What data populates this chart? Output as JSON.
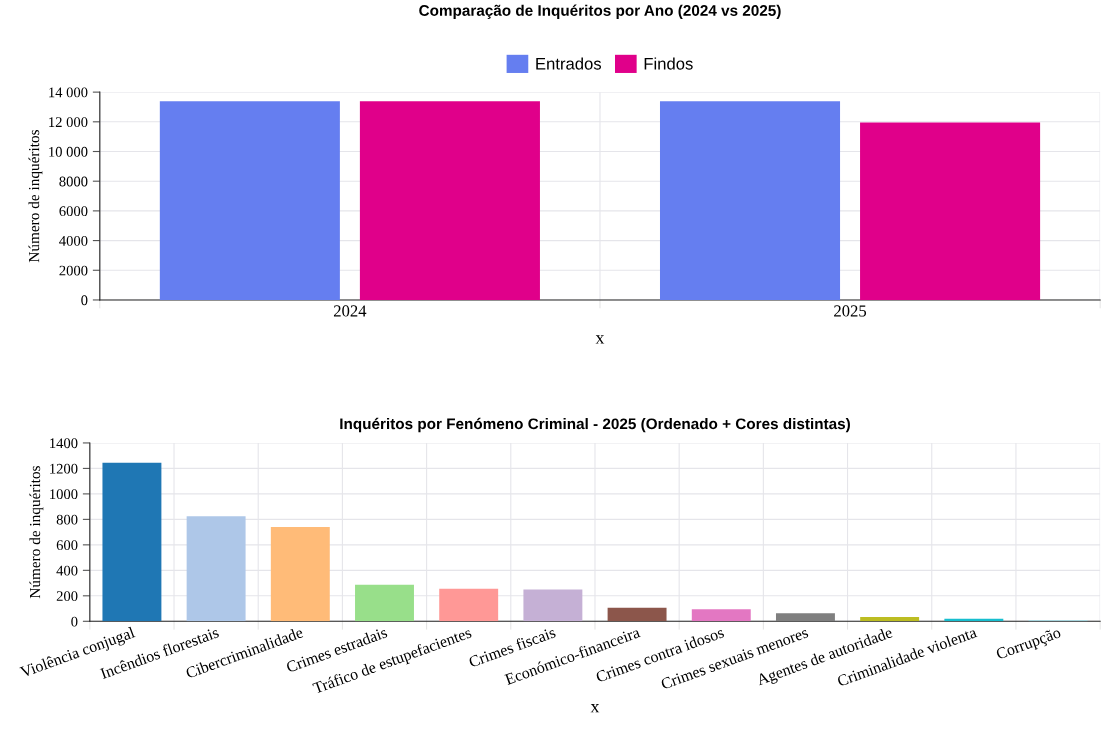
{
  "chart_data": [
    {
      "type": "bar",
      "title": "Comparação de Inquéritos por Ano (2024 vs 2025)",
      "xlabel": "x",
      "ylabel": "Número de inquéritos",
      "categories": [
        "2024",
        "2025"
      ],
      "series": [
        {
          "name": "Entrados",
          "color": "#657ef0",
          "values": [
            13380,
            13380
          ]
        },
        {
          "name": "Findos",
          "color": "#e0008a",
          "values": [
            13380,
            11950
          ]
        }
      ],
      "ylim": [
        0,
        14000
      ],
      "yticks": [
        0,
        2000,
        4000,
        6000,
        8000,
        {
          "value": 10000,
          "label": "10 000"
        },
        {
          "value": 12000,
          "label": "12 000"
        },
        {
          "value": 14000,
          "label": "14 000"
        }
      ],
      "grid": true,
      "legend": "top"
    },
    {
      "type": "bar",
      "title": "Inquéritos por Fenómeno Criminal - 2025 (Ordenado + Cores distintas)",
      "xlabel": "x",
      "ylabel": "Número de inquéritos",
      "categories": [
        "Violência conjugal",
        "Incêndios florestais",
        "Cibercriminalidade",
        "Crimes estradais",
        "Tráfico de estupefacientes",
        "Crimes fiscais",
        "Económico-financeira",
        "Crimes contra idosos",
        "Crimes sexuais menores",
        "Agentes de autoridade",
        "Criminalidade violenta",
        "Corrupção"
      ],
      "values": [
        1245,
        825,
        741,
        287,
        256,
        250,
        106,
        95,
        63,
        34,
        20,
        9
      ],
      "colors": [
        "#1f77b4",
        "#aec7e8",
        "#ffbb78",
        "#98df8a",
        "#ff9896",
        "#c5b0d5",
        "#8c564b",
        "#e377c2",
        "#7f7f7f",
        "#bcbd22",
        "#17becf",
        "#9edae5"
      ],
      "ylim": [
        0,
        1400
      ],
      "yticks": [
        0,
        200,
        400,
        600,
        800,
        1000,
        1200,
        1400
      ],
      "grid": true
    }
  ]
}
